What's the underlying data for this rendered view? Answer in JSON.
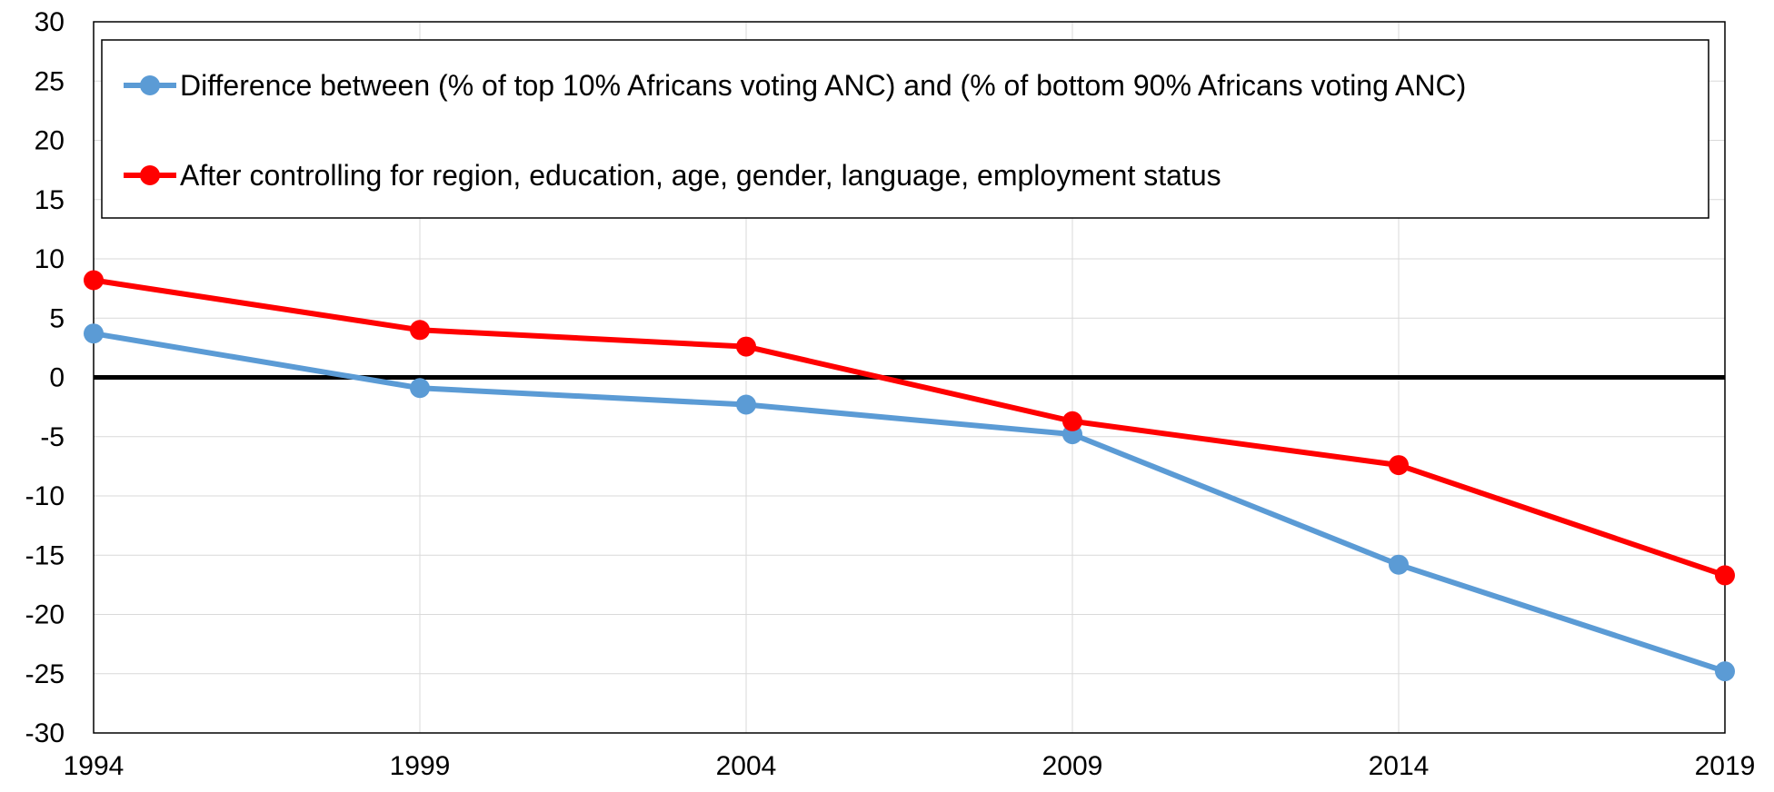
{
  "chart_data": {
    "type": "line",
    "title": "",
    "xlabel": "",
    "ylabel": "",
    "x": [
      1994,
      1999,
      2004,
      2009,
      2014,
      2019
    ],
    "x_tick_labels": [
      "1994",
      "1999",
      "2004",
      "2009",
      "2014",
      "2019"
    ],
    "ylim": [
      -30,
      30
    ],
    "y_ticks": [
      30,
      25,
      20,
      15,
      10,
      5,
      0,
      -5,
      -10,
      -15,
      -20,
      -25,
      -30
    ],
    "y_tick_labels": [
      "30",
      "25",
      "20",
      "15",
      "10",
      "5",
      "0",
      "-5",
      "-10",
      "-15",
      "-20",
      "-25",
      "-30"
    ],
    "grid": true,
    "zero_line": true,
    "legend_position": "top",
    "series": [
      {
        "name": "Difference between (% of top 10% Africans voting ANC) and (% of bottom 90% Africans voting ANC)",
        "color": "#5b9bd5",
        "values": [
          3.7,
          -0.9,
          -2.3,
          -4.8,
          -15.8,
          -24.8
        ]
      },
      {
        "name": "After controlling for region, education, age, gender, language, employment status",
        "color": "#ff0000",
        "values": [
          8.2,
          4.0,
          2.6,
          -3.7,
          -7.4,
          -16.7
        ]
      }
    ]
  }
}
